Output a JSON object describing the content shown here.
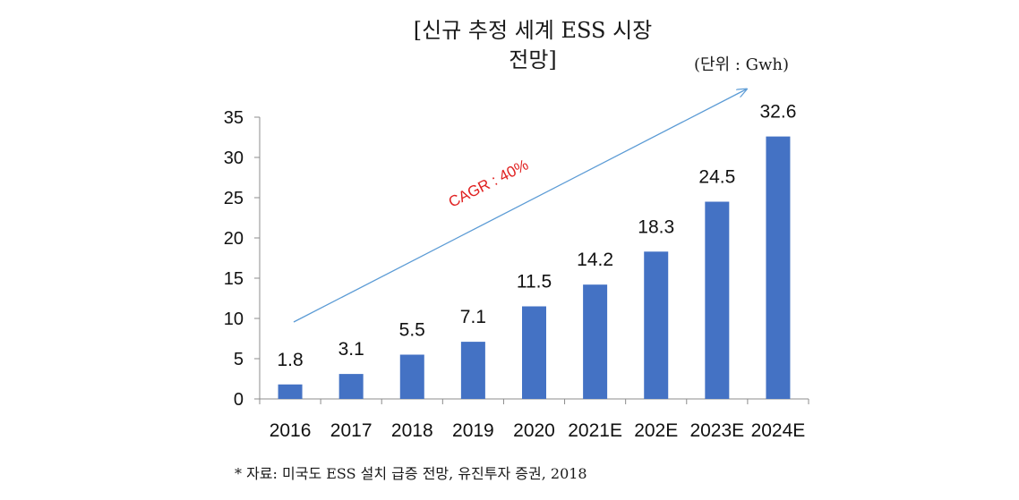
{
  "header": {
    "title_line1": "[신규 추정 세계 ESS 시장",
    "title_line2": "전망]",
    "unit": "(단위 : Gwh)"
  },
  "footer": {
    "source": "* 자료: 미국도 ESS 설치 급증 전망, 유진투자 증권, 2018"
  },
  "chart_data": {
    "type": "bar",
    "title": "[신규 추정 세계 ESS 시장 전망]",
    "categories": [
      "2016",
      "2017",
      "2018",
      "2019",
      "2020",
      "2021E",
      "202E",
      "2023E",
      "2024E"
    ],
    "values": [
      1.8,
      3.1,
      5.5,
      7.1,
      11.5,
      14.2,
      18.3,
      24.5,
      32.6
    ],
    "value_labels": [
      "1.8",
      "3.1",
      "5.5",
      "7.1",
      "11.5",
      "14.2",
      "18.3",
      "24.5",
      "32.6"
    ],
    "yticks": [
      "0",
      "5",
      "10",
      "15",
      "20",
      "25",
      "30",
      "35"
    ],
    "ylim": [
      0,
      35
    ],
    "grid": false,
    "bar_color": "#4472c4",
    "annotation": {
      "text": "CAGR : 40%",
      "color": "#e02020",
      "arrow_color": "#5b9bd5"
    }
  }
}
